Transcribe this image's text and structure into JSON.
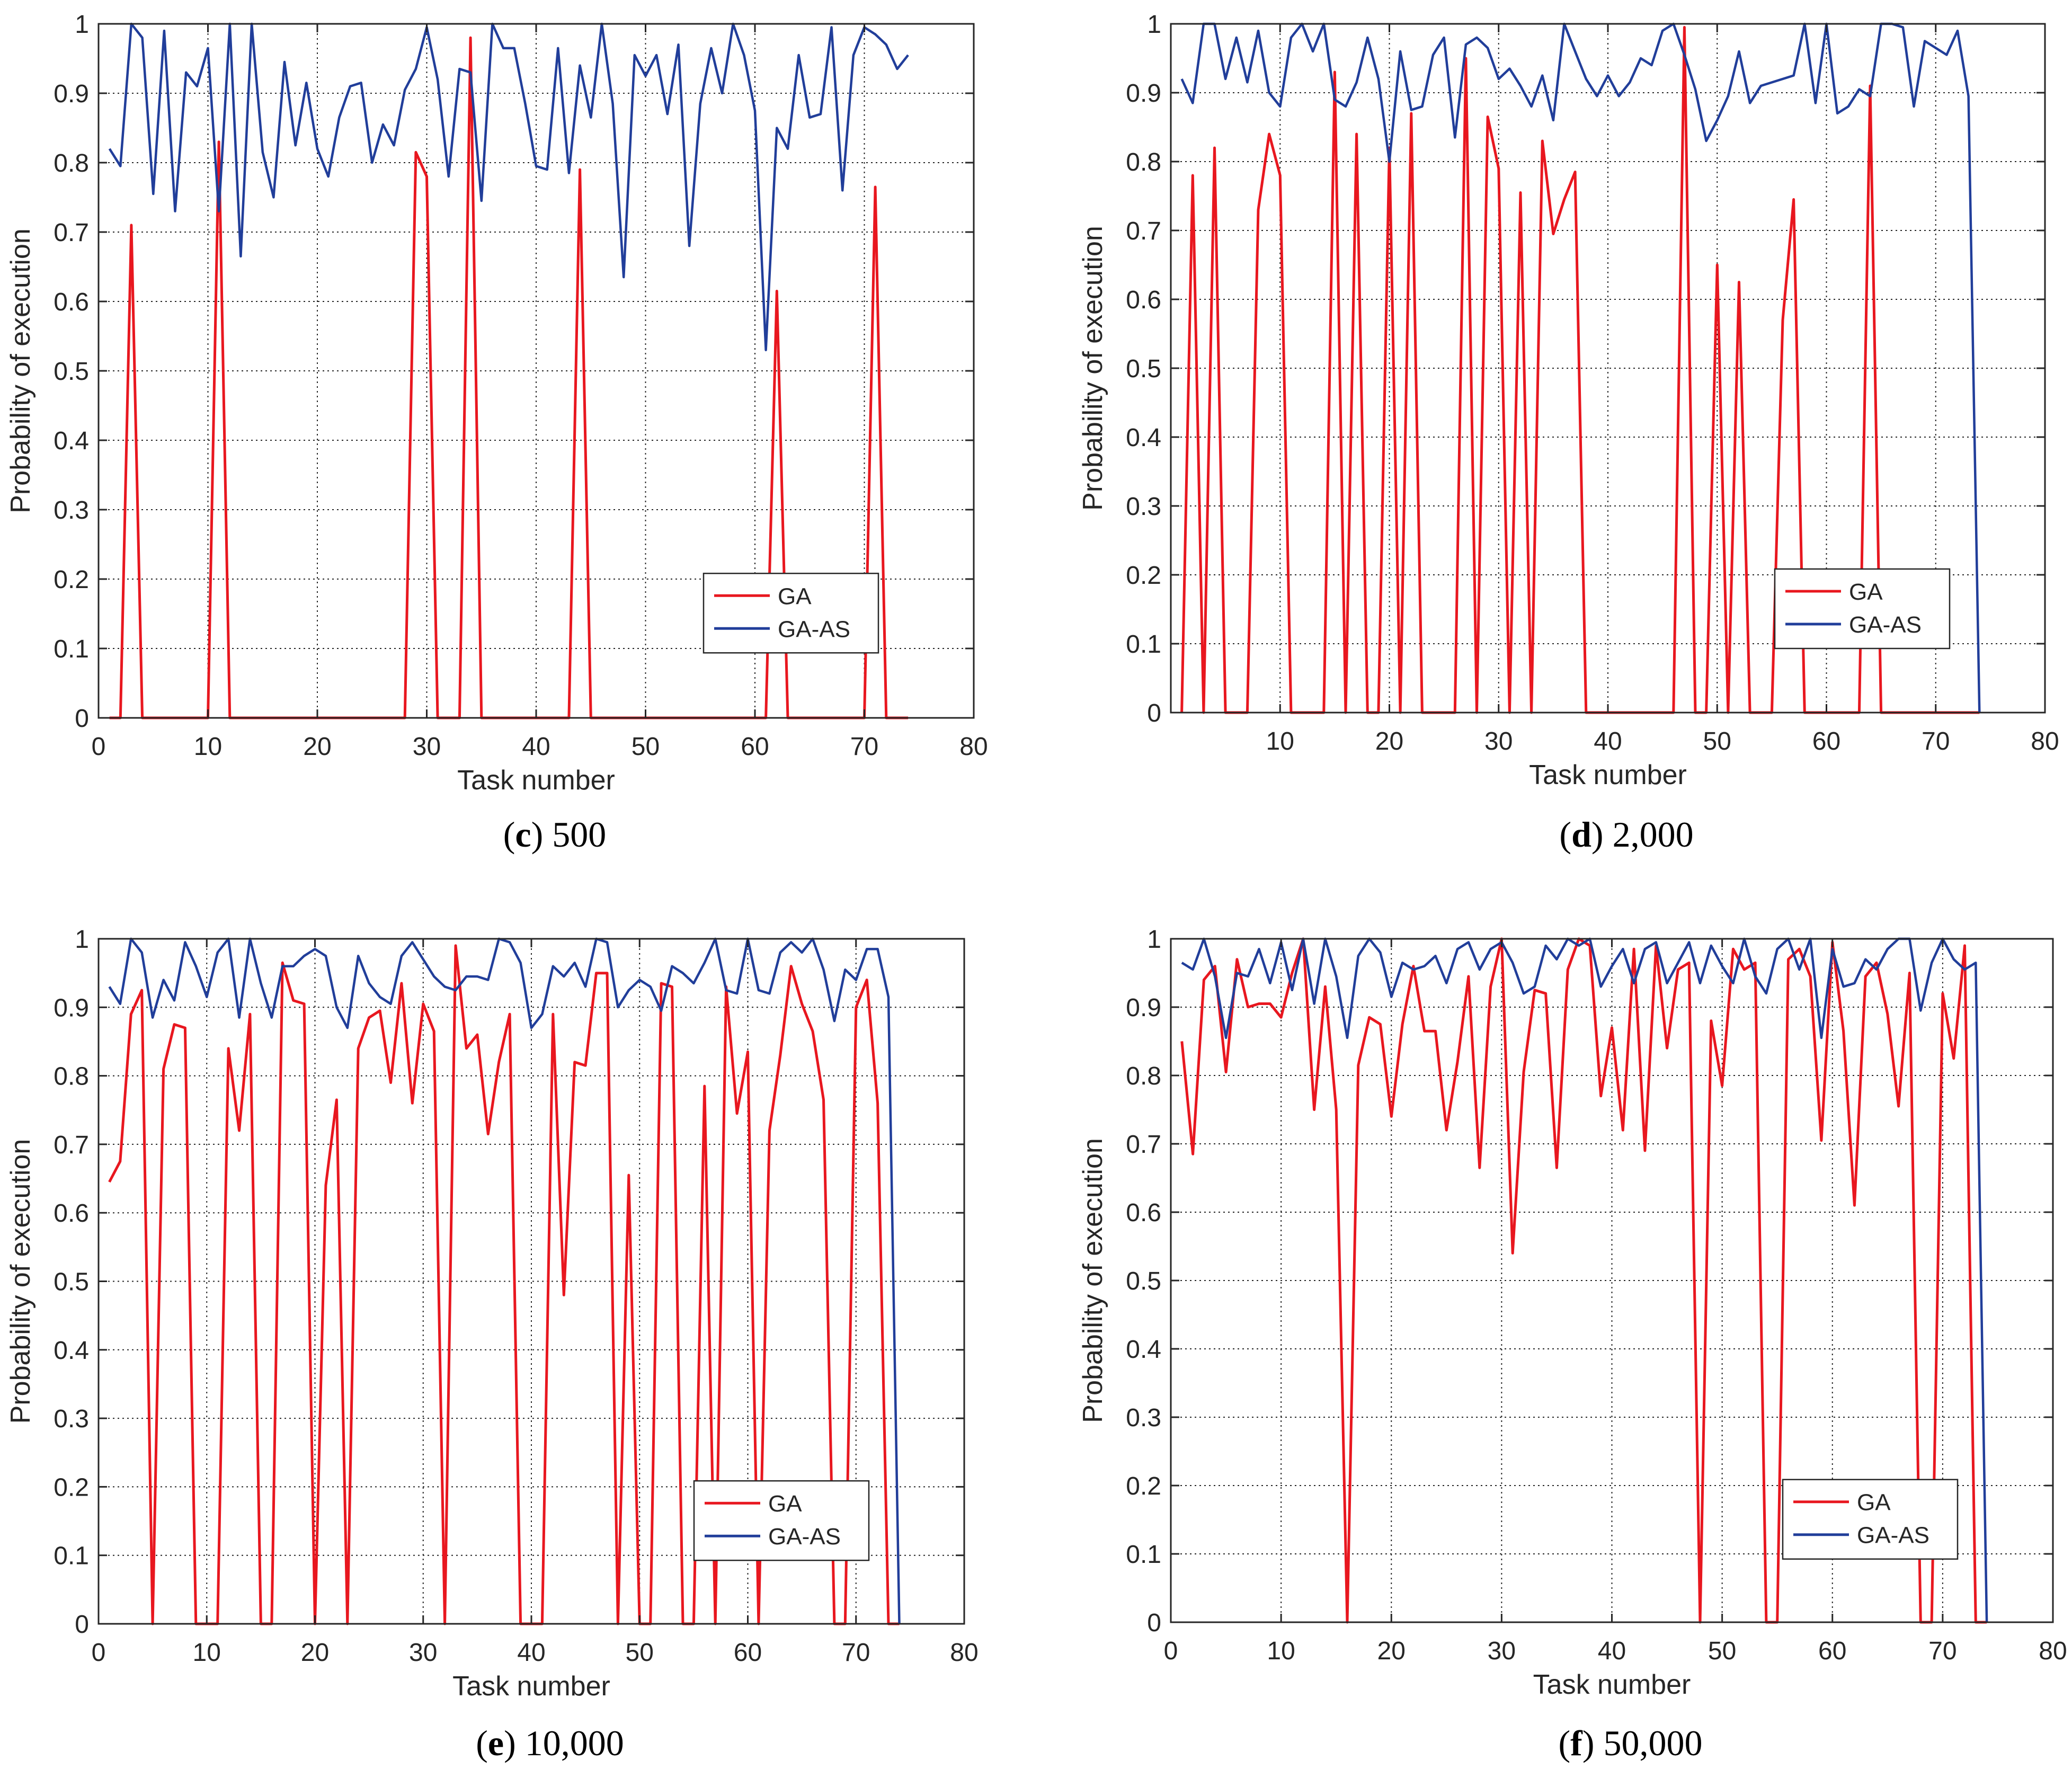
{
  "chart_data": [
    {
      "id": "c",
      "type": "line",
      "caption_letter": "c",
      "caption_text": "500",
      "xlabel": "Task number",
      "ylabel": "Probability of execution",
      "xlim": [
        0,
        80
      ],
      "ylim": [
        0,
        1
      ],
      "xticks": [
        "0",
        "10",
        "20",
        "30",
        "40",
        "50",
        "60",
        "70",
        "80"
      ],
      "yticks": [
        "0",
        "0.1",
        "0.2",
        "0.3",
        "0.4",
        "0.5",
        "0.6",
        "0.7",
        "0.8",
        "0.9",
        "1"
      ],
      "grid": true,
      "legend": "lower-right",
      "series": [
        {
          "name": "GA",
          "color": "#e8171f",
          "values": [
            0,
            0,
            0.71,
            0,
            0,
            0,
            0,
            0,
            0,
            0,
            0.83,
            0,
            0,
            0,
            0,
            0,
            0,
            0,
            0,
            0,
            0,
            0,
            0,
            0,
            0,
            0,
            0,
            0,
            0.815,
            0.78,
            0,
            0,
            0,
            0.98,
            0,
            0,
            0,
            0,
            0,
            0,
            0,
            0,
            0,
            0.79,
            0,
            0,
            0,
            0,
            0,
            0,
            0,
            0,
            0,
            0,
            0,
            0,
            0,
            0,
            0,
            0,
            0,
            0.615,
            0,
            0,
            0,
            0,
            0,
            0,
            0,
            0,
            0.765,
            0,
            0,
            0
          ]
        },
        {
          "name": "GA-AS",
          "color": "#213e9a",
          "values": [
            0.82,
            0.795,
            1.0,
            0.98,
            0.755,
            0.99,
            0.73,
            0.93,
            0.91,
            0.965,
            0.73,
            1.0,
            0.665,
            1.0,
            0.815,
            0.75,
            0.945,
            0.825,
            0.915,
            0.82,
            0.78,
            0.865,
            0.91,
            0.915,
            0.8,
            0.855,
            0.825,
            0.905,
            0.935,
            0.995,
            0.92,
            0.78,
            0.935,
            0.93,
            0.745,
            1.0,
            0.965,
            0.965,
            0.885,
            0.795,
            0.79,
            0.965,
            0.785,
            0.94,
            0.865,
            1.0,
            0.885,
            0.635,
            0.955,
            0.925,
            0.955,
            0.87,
            0.97,
            0.68,
            0.885,
            0.965,
            0.9,
            1.0,
            0.955,
            0.875,
            0.53,
            0.85,
            0.82,
            0.955,
            0.865,
            0.87,
            0.995,
            0.76,
            0.955,
            0.995,
            0.985,
            0.97,
            0.935,
            0.955
          ]
        }
      ]
    },
    {
      "id": "d",
      "type": "line",
      "caption_letter": "d",
      "caption_text": "2,000",
      "xlabel": "Task number",
      "ylabel": "Probability of execution",
      "xlim": [
        0,
        80
      ],
      "ylim": [
        0,
        1
      ],
      "xticks": [
        "",
        "10",
        "20",
        "30",
        "40",
        "50",
        "60",
        "70",
        "80"
      ],
      "yticks": [
        "0",
        "0.1",
        "0.2",
        "0.3",
        "0.4",
        "0.5",
        "0.6",
        "0.7",
        "0.8",
        "0.9",
        "1"
      ],
      "grid": true,
      "legend": "lower-right",
      "series": [
        {
          "name": "GA",
          "color": "#e8171f",
          "values": [
            0,
            0.78,
            0,
            0.82,
            0,
            0,
            0,
            0.73,
            0.84,
            0.78,
            0,
            0,
            0,
            0,
            0.93,
            0,
            0.84,
            0,
            0,
            0.82,
            0,
            0.87,
            0,
            0,
            0,
            0,
            0.95,
            0,
            0.865,
            0.79,
            0,
            0.755,
            0,
            0.83,
            0.695,
            0.745,
            0.785,
            0,
            0,
            0,
            0,
            0,
            0,
            0,
            0,
            0,
            0.995,
            0,
            0,
            0.65,
            0,
            0.625,
            0,
            0,
            0,
            0.57,
            0.745,
            0,
            0,
            0,
            0,
            0,
            0,
            0.91,
            0,
            0,
            0,
            0,
            0,
            0,
            0,
            0,
            0,
            0
          ]
        },
        {
          "name": "GA-AS",
          "color": "#213e9a",
          "values": [
            0.92,
            0.885,
            1.0,
            1.0,
            0.92,
            0.98,
            0.915,
            0.99,
            0.9,
            0.88,
            0.98,
            1.0,
            0.96,
            1.0,
            0.89,
            0.88,
            0.915,
            0.98,
            0.92,
            0.8,
            0.96,
            0.875,
            0.88,
            0.955,
            0.98,
            0.835,
            0.97,
            0.98,
            0.965,
            0.92,
            0.935,
            0.91,
            0.88,
            0.925,
            0.86,
            1.0,
            0.96,
            0.92,
            0.895,
            0.925,
            0.895,
            0.915,
            0.95,
            0.94,
            0.99,
            1.0,
            0.955,
            0.905,
            0.83,
            0.86,
            0.895,
            0.96,
            0.885,
            0.91,
            0.915,
            0.92,
            0.925,
            1.0,
            0.885,
            1.0,
            0.87,
            0.88,
            0.905,
            0.895,
            1.0,
            1.0,
            0.995,
            0.88,
            0.975,
            0.965,
            0.955,
            0.99,
            0.895,
            0
          ]
        }
      ]
    },
    {
      "id": "e",
      "type": "line",
      "caption_letter": "e",
      "caption_text": "10,000",
      "xlabel": "Task number",
      "ylabel": "Probability of execution",
      "xlim": [
        0,
        80
      ],
      "ylim": [
        0,
        1
      ],
      "xticks": [
        "0",
        "10",
        "20",
        "30",
        "40",
        "50",
        "60",
        "70",
        "80"
      ],
      "yticks": [
        "0",
        "0.1",
        "0.2",
        "0.3",
        "0.4",
        "0.5",
        "0.6",
        "0.7",
        "0.8",
        "0.9",
        "1"
      ],
      "grid": true,
      "legend": "lower-right",
      "series": [
        {
          "name": "GA",
          "color": "#e8171f",
          "values": [
            0.645,
            0.675,
            0.89,
            0.925,
            0,
            0.81,
            0.875,
            0.87,
            0,
            0,
            0,
            0.84,
            0.72,
            0.89,
            0,
            0,
            0.965,
            0.91,
            0.905,
            0,
            0.64,
            0.765,
            0,
            0.84,
            0.885,
            0.895,
            0.79,
            0.935,
            0.76,
            0.905,
            0.865,
            0,
            0.99,
            0.84,
            0.86,
            0.715,
            0.82,
            0.89,
            0,
            0,
            0,
            0.89,
            0.48,
            0.82,
            0.815,
            0.95,
            0.95,
            0,
            0.655,
            0,
            0,
            0.935,
            0.93,
            0,
            0,
            0.785,
            0,
            0.93,
            0.745,
            0.835,
            0,
            0.72,
            0.83,
            0.96,
            0.905,
            0.865,
            0.765,
            0,
            0,
            0.9,
            0.94,
            0.76,
            0,
            0
          ]
        },
        {
          "name": "GA-AS",
          "color": "#213e9a",
          "values": [
            0.93,
            0.905,
            1.0,
            0.98,
            0.885,
            0.94,
            0.91,
            0.995,
            0.96,
            0.915,
            0.98,
            1.0,
            0.885,
            1.0,
            0.935,
            0.885,
            0.96,
            0.96,
            0.975,
            0.985,
            0.975,
            0.9,
            0.87,
            0.975,
            0.935,
            0.915,
            0.905,
            0.975,
            0.995,
            0.97,
            0.945,
            0.93,
            0.925,
            0.945,
            0.945,
            0.94,
            1.0,
            0.995,
            0.965,
            0.87,
            0.89,
            0.96,
            0.945,
            0.965,
            0.93,
            1.0,
            0.995,
            0.9,
            0.925,
            0.94,
            0.93,
            0.895,
            0.96,
            0.95,
            0.935,
            0.965,
            1.0,
            0.925,
            0.92,
            1.0,
            0.925,
            0.92,
            0.98,
            0.995,
            0.98,
            1.0,
            0.955,
            0.88,
            0.955,
            0.94,
            0.985,
            0.985,
            0.915,
            0
          ]
        }
      ]
    },
    {
      "id": "f",
      "type": "line",
      "caption_letter": "f",
      "caption_text": "50,000",
      "xlabel": "Task number",
      "ylabel": "Probability of execution",
      "xlim": [
        0,
        80
      ],
      "ylim": [
        0,
        1
      ],
      "xticks": [
        "0",
        "10",
        "20",
        "30",
        "40",
        "50",
        "60",
        "70",
        "80"
      ],
      "yticks": [
        "0",
        "0.1",
        "0.2",
        "0.3",
        "0.4",
        "0.5",
        "0.6",
        "0.7",
        "0.8",
        "0.9",
        "1"
      ],
      "grid": true,
      "legend": "lower-right",
      "series": [
        {
          "name": "GA",
          "color": "#e8171f",
          "values": [
            0.85,
            0.685,
            0.94,
            0.96,
            0.805,
            0.97,
            0.9,
            0.905,
            0.905,
            0.885,
            0.95,
            1.0,
            0.75,
            0.93,
            0.75,
            0,
            0.815,
            0.885,
            0.875,
            0.74,
            0.875,
            0.96,
            0.865,
            0.865,
            0.72,
            0.82,
            0.945,
            0.665,
            0.93,
            1.0,
            0.54,
            0.805,
            0.925,
            0.92,
            0.665,
            0.955,
            1.0,
            0.99,
            0.77,
            0.87,
            0.72,
            0.985,
            0.69,
            0.99,
            0.84,
            0.955,
            0.965,
            0,
            0.88,
            0.785,
            0.985,
            0.955,
            0.965,
            0,
            0,
            0.97,
            0.985,
            0.945,
            0.705,
            0.995,
            0.865,
            0.61,
            0.945,
            0.965,
            0.89,
            0.755,
            0.95,
            0,
            0,
            0.92,
            0.825,
            0.99,
            0,
            0
          ]
        },
        {
          "name": "GA-AS",
          "color": "#213e9a",
          "values": [
            0.965,
            0.955,
            1.0,
            0.945,
            0.855,
            0.95,
            0.945,
            0.985,
            0.935,
            0.995,
            0.925,
            1.0,
            0.905,
            1.0,
            0.945,
            0.855,
            0.975,
            1.0,
            0.98,
            0.915,
            0.965,
            0.955,
            0.96,
            0.975,
            0.935,
            0.985,
            0.995,
            0.955,
            0.985,
            0.995,
            0.965,
            0.92,
            0.93,
            0.99,
            0.97,
            1.0,
            0.99,
            1.0,
            0.93,
            0.96,
            0.985,
            0.935,
            0.985,
            0.995,
            0.935,
            0.965,
            0.995,
            0.935,
            0.99,
            0.96,
            0.935,
            1.0,
            0.945,
            0.92,
            0.985,
            1.0,
            0.955,
            1.0,
            0.855,
            0.985,
            0.93,
            0.935,
            0.97,
            0.955,
            0.985,
            1.0,
            1.0,
            0.895,
            0.965,
            1.0,
            0.97,
            0.955,
            0.965,
            0
          ]
        }
      ]
    }
  ]
}
